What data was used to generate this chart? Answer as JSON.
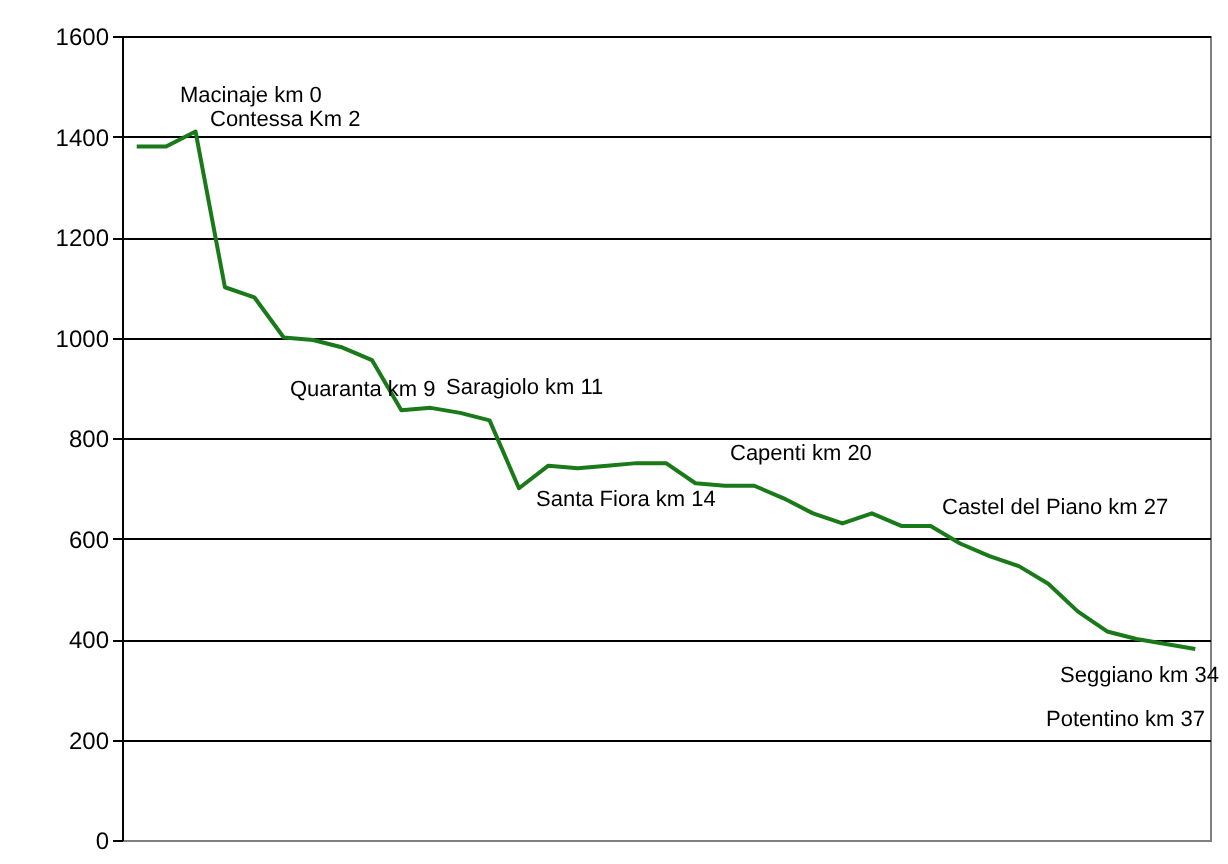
{
  "chart_data": {
    "type": "line",
    "categories": [
      null,
      null,
      null,
      null,
      null,
      null,
      null,
      null,
      null,
      null,
      null,
      null,
      null,
      null,
      null,
      null,
      null,
      null,
      null,
      null,
      null,
      null,
      null,
      null,
      null,
      null,
      null,
      null,
      null,
      null,
      null,
      null,
      null,
      null,
      null,
      null,
      null
    ],
    "series": [
      {
        "color": "#1a7a1a",
        "values": [
          1380,
          1380,
          1410,
          1100,
          1080,
          1000,
          995,
          980,
          955,
          855,
          860,
          850,
          835,
          700,
          745,
          740,
          745,
          750,
          750,
          710,
          705,
          705,
          680,
          650,
          630,
          650,
          625,
          625,
          590,
          565,
          545,
          510,
          455,
          415,
          400,
          390,
          380
        ]
      }
    ],
    "ylim": [
      0,
      1600
    ],
    "yticks": [
      0,
      200,
      400,
      600,
      800,
      1000,
      1200,
      1400,
      1600
    ],
    "grid": "y",
    "tick_labels": "y",
    "marker": "none",
    "line_style": "solid",
    "annotations": [
      "Macinaje km 0",
      "Contessa Km 2",
      "Quaranta km 9",
      "Saragiolo km 11",
      "Santa Fiora km 14",
      "Capenti km 20",
      "Castel del Piano km 27",
      "Seggiano km 34",
      "Potentino km 37"
    ]
  }
}
